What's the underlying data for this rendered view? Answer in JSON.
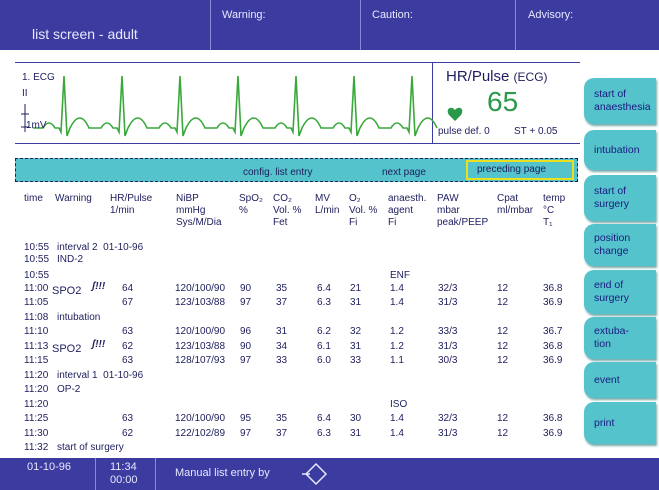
{
  "header": {
    "title": "list screen - adult",
    "warning": "Warning:",
    "caution": "Caution:",
    "advisory": "Advisory:"
  },
  "ecg": {
    "lead": "1. ECG",
    "lead2": "II",
    "scale": "1mV"
  },
  "hr_box": {
    "title": "HR/Pulse",
    "source": "(ECG)",
    "value": "65",
    "pulse_def": "pulse def. 0",
    "st": "ST + 0.05"
  },
  "toolbar": {
    "config": "config. list entry",
    "next": "next page",
    "preceding": "preceding page"
  },
  "table": {
    "columns": [
      [
        "time"
      ],
      [
        "Warning"
      ],
      [
        "HR/Pulse",
        "1/min"
      ],
      [
        "NiBP",
        "mmHg",
        "Sys/M/Dia"
      ],
      [
        "SpO₂",
        "%"
      ],
      [
        "CO₂",
        "Vol. %",
        "Fet"
      ],
      [
        "MV",
        "L/min"
      ],
      [
        "O₂",
        "Vol. %",
        "Fi"
      ],
      [
        "anaesth.",
        "agent",
        "Fi"
      ],
      [
        "PAW",
        "mbar",
        "peak/PEEP"
      ],
      [
        "Cpat",
        "ml/mbar"
      ],
      [
        "temp",
        "°C",
        "T₁"
      ]
    ],
    "rows": [
      {
        "time": "10:55",
        "note": "interval 2  01-10-96"
      },
      {
        "time": "10:55",
        "note": "IND-2"
      },
      {
        "time": "10:55",
        "agent": "ENF"
      },
      {
        "time": "11:00",
        "warning": "SPO2",
        "alarm": "ʃ!!!",
        "values": [
          "64",
          "120/100/90",
          "90",
          "35",
          "6.4",
          "21",
          "1.4",
          "32/3",
          "12",
          "36.8"
        ]
      },
      {
        "time": "11:05",
        "values": [
          "67",
          "123/103/88",
          "97",
          "37",
          "6.3",
          "31",
          "1.4",
          "31/3",
          "12",
          "36.9"
        ]
      },
      {
        "time": "11:08",
        "note": "intubation"
      },
      {
        "time": "11:10",
        "values": [
          "63",
          "120/100/90",
          "96",
          "31",
          "6.2",
          "32",
          "1.2",
          "33/3",
          "12",
          "36.7"
        ]
      },
      {
        "time": "11:13",
        "warning": "SPO2",
        "alarm": "ʃ!!!",
        "values": [
          "62",
          "123/103/88",
          "90",
          "34",
          "6.1",
          "31",
          "1.2",
          "31/3",
          "12",
          "36.8"
        ]
      },
      {
        "time": "11:15",
        "values": [
          "63",
          "128/107/93",
          "97",
          "33",
          "6.0",
          "33",
          "1.1",
          "30/3",
          "12",
          "36.9"
        ]
      },
      {
        "time": "11:20",
        "note": "interval 1  01-10-96"
      },
      {
        "time": "11:20",
        "note": "OP-2"
      },
      {
        "time": "11:20",
        "agent": "ISO"
      },
      {
        "time": "11:25",
        "values": [
          "63",
          "120/100/90",
          "95",
          "35",
          "6.4",
          "30",
          "1.4",
          "32/3",
          "12",
          "36.8"
        ]
      },
      {
        "time": "11:30",
        "values": [
          "62",
          "122/102/89",
          "97",
          "37",
          "6.3",
          "31",
          "1.4",
          "31/3",
          "12",
          "36.9"
        ]
      },
      {
        "time": "11:32",
        "note": "start of surgery"
      }
    ]
  },
  "buttons": [
    [
      "start of",
      "anaesthesia"
    ],
    [
      "intubation"
    ],
    [
      "start of",
      "surgery"
    ],
    [
      "position",
      "change"
    ],
    [
      "end of",
      "surgery"
    ],
    [
      "extuba-",
      "tion"
    ],
    [
      "event"
    ],
    [
      "print"
    ]
  ],
  "footer": {
    "date": "01-10-96",
    "time": "11:34",
    "elapsed": "00:00",
    "entry": "Manual list entry by"
  }
}
